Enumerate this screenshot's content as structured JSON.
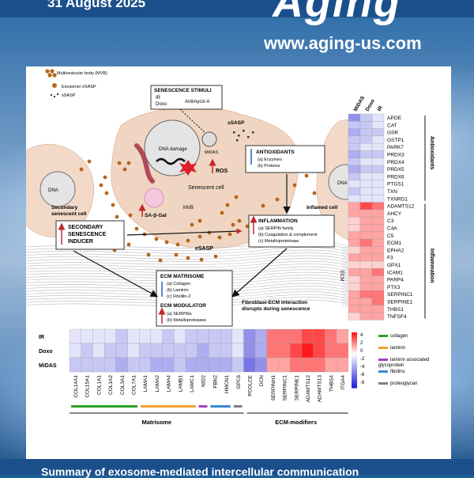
{
  "header": {
    "date": "31 August 2025",
    "logo": "Aging",
    "url": "www.aging-us.com"
  },
  "footer": {
    "text": "Summary of exosome-mediated intercellular communication"
  },
  "diagram": {
    "legend": {
      "mvb": "Multivesicular body (MVB)",
      "exosome": "Exosome/ eSASP",
      "ssasp": "sSASP"
    },
    "stimuli": {
      "title": "SENESCENCE STIMULI",
      "ir": "IR",
      "doxo": "Doxo",
      "antimycin": "Antimycin A",
      "midas": "MiDAS"
    },
    "labels": {
      "dna_damage": "DNA damage",
      "dna_left": "DNA",
      "dna_right": "DNA",
      "ssasp": "sSASP",
      "ros": "ROS",
      "senescent_cell": "Senescent cell",
      "sa_gal": "SA-β-Gal",
      "mvb": "MVB",
      "esasp": "eSASP",
      "secondary_cell_1": "Secondary",
      "secondary_cell_2": "senescent cell",
      "inflamed_cell": "Inflamed cell",
      "ecm": "ECM",
      "fibro_1": "Fibroblast-ECM interaction",
      "fibro_2": "disrupts during senescence"
    },
    "antioxidants": {
      "title": "ANTIOXIDANTS",
      "items": [
        "(a)  Enzymes",
        "(b)  Proteins"
      ]
    },
    "inflammation": {
      "title": "INFLAMMATION",
      "items": [
        "(a) SERPIN family",
        "(b) Coagulation & complement",
        "(c) Metalloproteinase"
      ]
    },
    "secondary": {
      "lines": [
        "SECONDARY",
        "SENESCENCE",
        "INDUCER"
      ]
    },
    "matrisome": {
      "title": "ECM MATRISOME",
      "items": [
        "(a)  Collagen",
        "(b)  Laminin",
        "(c)  Fibrillin-2"
      ]
    },
    "modulator": {
      "title": "ECM MODULATOR",
      "items": [
        "(a)  SERPINs",
        "(b)  Metalloproteases"
      ]
    }
  },
  "right_heatmap": {
    "columns": [
      "MiDAS",
      "Doxo",
      "IR"
    ],
    "genes": [
      "APOE",
      "CAT",
      "GSR",
      "GSTP1",
      "PARK7",
      "PRDX3",
      "PRDX4",
      "PRDX5",
      "PRDX6",
      "PTGS1",
      "TXN",
      "TXNRD1",
      "ADAMTS12",
      "AHCY",
      "C3",
      "C4A",
      "C5",
      "ECM1",
      "EPHA2",
      "F3",
      "GPX1",
      "ICAM1",
      "PARP4",
      "PTX3",
      "SERPINC1",
      "SERPINE1",
      "THBS1",
      "TNFSF4"
    ],
    "values": [
      [
        -4,
        -2,
        -1
      ],
      [
        -2,
        -2,
        -1
      ],
      [
        -3,
        -2,
        -2
      ],
      [
        -2,
        -2,
        -1
      ],
      [
        -2,
        -1,
        -1
      ],
      [
        -3,
        -2,
        -2
      ],
      [
        -2,
        -1,
        -1
      ],
      [
        -3,
        -2,
        -2
      ],
      [
        -2,
        -1,
        -1
      ],
      [
        -1,
        -1,
        -1
      ],
      [
        -2,
        -1,
        -1
      ],
      [
        -1,
        -1,
        -1
      ],
      [
        2,
        4,
        3
      ],
      [
        2,
        2,
        2
      ],
      [
        1,
        2,
        2
      ],
      [
        1,
        2,
        2
      ],
      [
        2,
        2,
        2
      ],
      [
        2,
        3,
        2
      ],
      [
        1,
        2,
        2
      ],
      [
        2,
        2,
        2
      ],
      [
        1,
        1,
        1
      ],
      [
        2,
        2,
        3
      ],
      [
        1,
        2,
        2
      ],
      [
        1,
        2,
        2
      ],
      [
        2,
        3,
        3
      ],
      [
        2,
        2,
        3
      ],
      [
        2,
        2,
        2
      ],
      [
        1,
        2,
        2
      ]
    ],
    "groups": [
      "Antioxidants",
      "Inflammation"
    ]
  },
  "bottom_heatmap": {
    "rows": [
      "IR",
      "Doxo",
      "MiDAS"
    ],
    "genes": [
      "COL14A1",
      "COL15A1",
      "COL1A1",
      "COL1A2",
      "COL3A1",
      "COL7A1",
      "LAMA1",
      "LAMA2",
      "LAMA4",
      "LAMB1",
      "LAMC1",
      "NID2",
      "FBN2",
      "HMCN1",
      "GPC6",
      "PCOLCE",
      "DCN",
      "SERPINH1",
      "SERPINC1",
      "SERPINE1",
      "ADAMTS12",
      "ADAMTS13",
      "THBS4",
      "ITGA4"
    ],
    "values": [
      [
        -1,
        -1,
        -1,
        -1,
        -2,
        -1,
        -1,
        -1,
        -2,
        -1,
        -2,
        -2,
        -2,
        -2,
        -1,
        -4,
        -3,
        3,
        3,
        3,
        4,
        4,
        3,
        2
      ],
      [
        -1,
        -2,
        -1,
        -2,
        -2,
        -1,
        -2,
        -2,
        -2,
        -2,
        -2,
        -3,
        -2,
        -2,
        -1,
        -4,
        -3,
        3,
        3,
        4,
        5,
        4,
        3,
        3
      ],
      [
        -2,
        -2,
        -2,
        -2,
        -3,
        -2,
        -2,
        -3,
        -3,
        -2,
        -3,
        -3,
        -3,
        -3,
        -2,
        -5,
        -4,
        2,
        2,
        3,
        3,
        3,
        2,
        2
      ]
    ],
    "groups": [
      "Matrisome",
      "ECM-modifiers"
    ],
    "scale_ticks": [
      "4",
      "2",
      "0",
      "-2",
      "-4",
      "-6",
      "-8"
    ],
    "legend": [
      {
        "label": "collagen",
        "color": "#2ca02c"
      },
      {
        "label": "laminin",
        "color": "#f0a030"
      },
      {
        "label": "laminin associated glycoprotein",
        "color": "#a040c0"
      },
      {
        "label": "fibrilins",
        "color": "#3a8ad8"
      },
      {
        "label": "proteoglycan",
        "color": "#808080"
      }
    ]
  }
}
